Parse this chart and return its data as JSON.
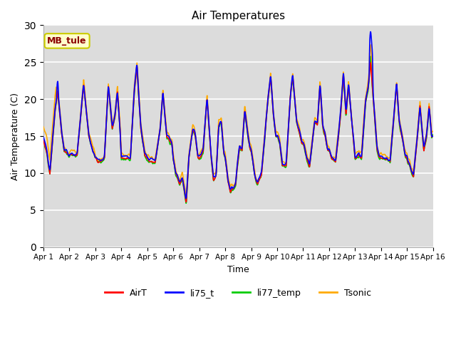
{
  "title": "Air Temperatures",
  "xlabel": "Time",
  "ylabel": "Air Temperature (C)",
  "ylim": [
    0,
    30
  ],
  "yticks": [
    0,
    5,
    10,
    15,
    20,
    25,
    30
  ],
  "legend_label": "MB_tule",
  "series_labels": [
    "AirT",
    "li75_t",
    "li77_temp",
    "Tsonic"
  ],
  "series_colors": [
    "#ff0000",
    "#0000ff",
    "#00cc00",
    "#ffaa00"
  ],
  "plot_bg_color": "#dcdcdc",
  "x_tick_positions": [
    0,
    1,
    2,
    3,
    4,
    5,
    6,
    7,
    8,
    9,
    10,
    11,
    12,
    13,
    14,
    15
  ],
  "x_tick_labels": [
    "Apr 1",
    "Apr 2",
    "Apr 3",
    "Apr 4",
    "Apr 5",
    "Apr 6",
    "Apr 7",
    "Apr 8",
    "Apr 9",
    "Apr 10",
    "Apr 11",
    "Apr 12",
    "Apr 13",
    "Apr 14",
    "Apr 15",
    "Apr 16"
  ],
  "grid_color": "#ffffff",
  "linewidth": 1.2,
  "annotation_facecolor": "#ffffcc",
  "annotation_edgecolor": "#cccc00",
  "annotation_textcolor": "#8b0000"
}
